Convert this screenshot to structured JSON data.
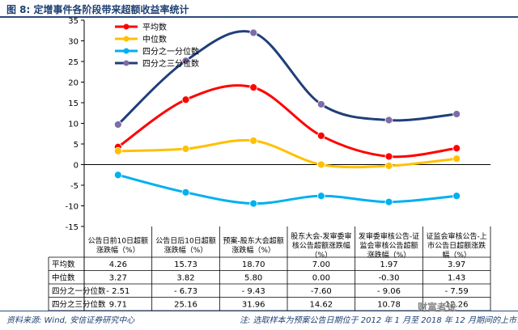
{
  "header": {
    "title": "图 8:  定增事件各阶段带来超额收益率统计"
  },
  "footer": {
    "source": "资料来源: Wind, 安信证券研究中心",
    "note": "注: 选取样本为预案公告日期位于 2012 年 1 月至 2018 年 12 月期间的上市公司",
    "watermark": "财富者说"
  },
  "colors": {
    "title": "#1e3f73",
    "axis": "#000000"
  },
  "chart_data": {
    "type": "line",
    "title": "",
    "xlabel": "",
    "ylabel": "",
    "ylim": [
      -15,
      35
    ],
    "yticks": [
      -15,
      -10,
      -5,
      0,
      5,
      10,
      15,
      20,
      25,
      30,
      35
    ],
    "grid": false,
    "legend_position": "top-left",
    "categories": [
      [
        "公告日前10日超额",
        "涨跌幅（%）"
      ],
      [
        "公告日后10日超额",
        "涨跌幅（%）"
      ],
      [
        "预案-股东大会超额",
        "涨跌幅（%）"
      ],
      [
        "股东大会-发审委审",
        "核公告超额涨跌幅",
        "（%）"
      ],
      [
        "发审委审核公告-证",
        "监会审核公告超额",
        "涨跌幅（%）"
      ],
      [
        "证监会审核公告-上",
        "市公告日超额涨跌",
        "幅（%）"
      ]
    ],
    "series": [
      {
        "name": "平均数",
        "color": "#ff0000",
        "marker": "circle",
        "values": [
          4.26,
          15.73,
          18.7,
          7.0,
          1.97,
          3.97
        ],
        "labels": [
          "4.26",
          "15.73",
          "18.70",
          "7.00",
          "1.97",
          "3.97"
        ]
      },
      {
        "name": "中位数",
        "color": "#ffc000",
        "marker": "circle",
        "values": [
          3.27,
          3.82,
          5.8,
          0.0,
          -0.3,
          1.43
        ],
        "labels": [
          "3.27",
          "3.82",
          "5.80",
          "0.00",
          "-0.30",
          "1.43"
        ]
      },
      {
        "name": "四分之一分位数",
        "color": "#00b0f0",
        "marker": "circle",
        "values": [
          -2.51,
          -6.73,
          -9.43,
          -7.6,
          -9.06,
          -7.59
        ],
        "labels": [
          "- 2.51",
          "- 6.73",
          "- 9.43",
          "-7.60",
          "- 9.06",
          "- 7.59"
        ]
      },
      {
        "name": "四分之三分位数",
        "color": "#1f3f7a",
        "marker": "circle",
        "marker_color": "#7e6ca8",
        "values": [
          9.71,
          25.16,
          31.96,
          14.62,
          10.78,
          12.26
        ],
        "labels": [
          "9.71",
          "25.16",
          "31.96",
          "14.62",
          "10.78",
          "12.26"
        ]
      }
    ]
  }
}
